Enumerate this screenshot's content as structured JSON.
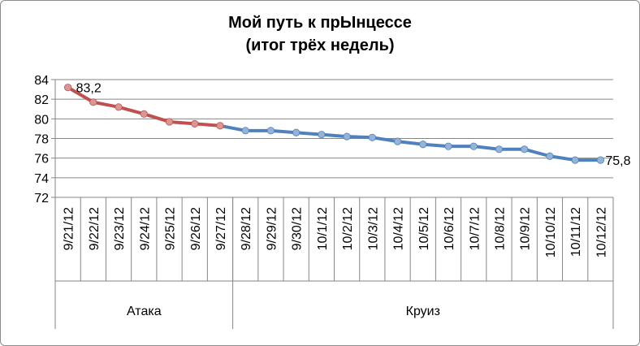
{
  "chart_data": {
    "type": "line",
    "title": "Мой путь к прЫнцессе",
    "subtitle": "(итог трёх недель)",
    "x": [
      "9/21/12",
      "9/22/12",
      "9/23/12",
      "9/24/12",
      "9/25/12",
      "9/26/12",
      "9/27/12",
      "9/28/12",
      "9/29/12",
      "9/30/12",
      "10/1/12",
      "10/2/12",
      "10/3/12",
      "10/4/12",
      "10/5/12",
      "10/6/12",
      "10/7/12",
      "10/8/12",
      "10/9/12",
      "10/10/12",
      "10/11/12",
      "10/12/12"
    ],
    "groups": [
      {
        "label": "Атака",
        "from": "9/21/12",
        "to": "9/27/12"
      },
      {
        "label": "Круиз",
        "from": "9/28/12",
        "to": "10/12/12"
      }
    ],
    "series": [
      {
        "name": "Атака",
        "color": "#c0504d",
        "x": [
          "9/21/12",
          "9/22/12",
          "9/23/12",
          "9/24/12",
          "9/25/12",
          "9/26/12",
          "9/27/12"
        ],
        "values": [
          83.2,
          81.7,
          81.2,
          80.5,
          79.7,
          79.5,
          79.3
        ]
      },
      {
        "name": "Круиз",
        "color": "#4f81bd",
        "x": [
          "9/27/12",
          "9/28/12",
          "9/29/12",
          "9/30/12",
          "10/1/12",
          "10/2/12",
          "10/3/12",
          "10/4/12",
          "10/5/12",
          "10/6/12",
          "10/7/12",
          "10/8/12",
          "10/9/12",
          "10/10/12",
          "10/11/12",
          "10/12/12"
        ],
        "values": [
          79.3,
          78.8,
          78.8,
          78.6,
          78.4,
          78.2,
          78.1,
          77.7,
          77.4,
          77.2,
          77.2,
          76.9,
          76.9,
          76.2,
          75.8,
          75.8
        ]
      }
    ],
    "point_colors": {
      "Атака": "#d99694",
      "Круиз": "#95b3d7"
    },
    "data_labels": [
      {
        "x": "9/21/12",
        "text": "83,2"
      },
      {
        "x": "10/12/12",
        "text": "75,8"
      }
    ],
    "ylim": [
      72,
      84
    ],
    "yticks": [
      72,
      74,
      76,
      78,
      80,
      82,
      84
    ],
    "grid": true,
    "legend": "none"
  }
}
